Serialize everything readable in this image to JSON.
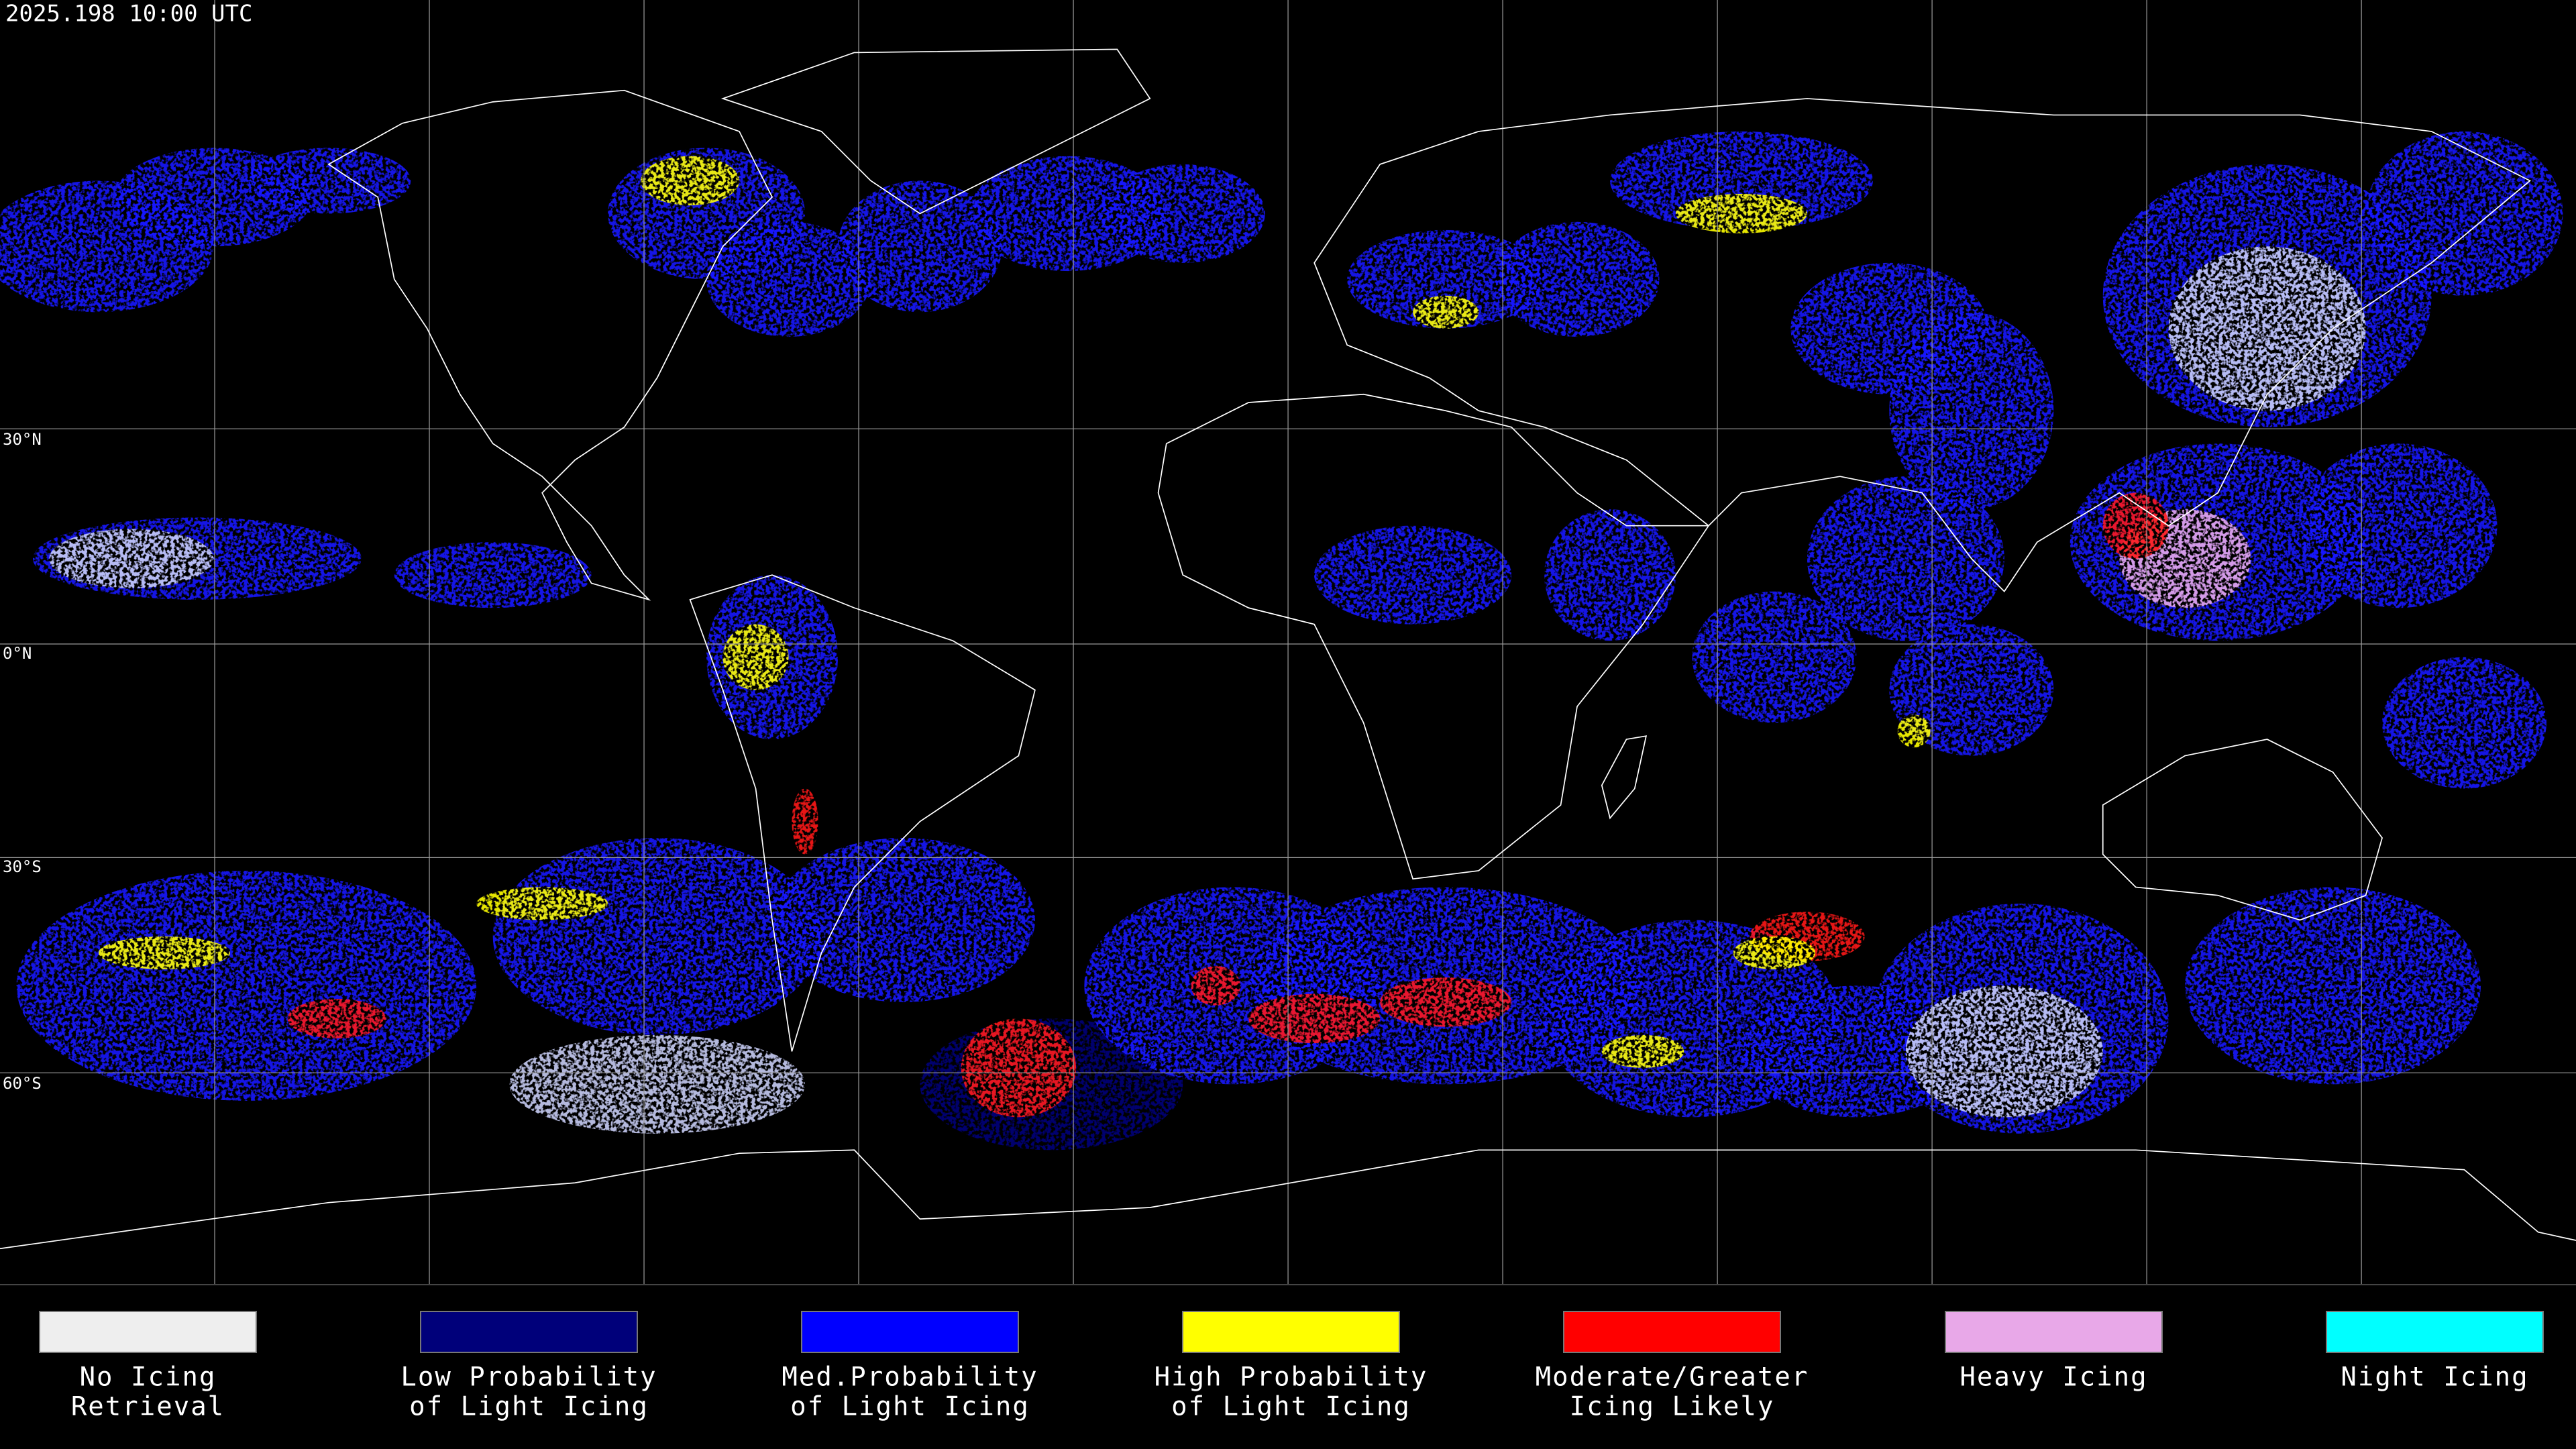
{
  "header": {
    "title": "2025.198 10:00 UTC"
  },
  "map": {
    "latitude_labels": [
      "30°N",
      "0°N",
      "30°S",
      "60°S"
    ]
  },
  "legend": {
    "items": [
      {
        "label": [
          "No Icing",
          "Retrieval"
        ],
        "color": "#eeeeee"
      },
      {
        "label": [
          "Low Probability",
          "of Light Icing"
        ],
        "color": "#00007a"
      },
      {
        "label": [
          "Med.Probability",
          "of Light Icing"
        ],
        "color": "#0000ff"
      },
      {
        "label": [
          "High Probability",
          "of Light Icing"
        ],
        "color": "#ffff00"
      },
      {
        "label": [
          "Moderate/Greater",
          "Icing Likely"
        ],
        "color": "#ff0000"
      },
      {
        "label": [
          "Heavy Icing"
        ],
        "color": "#e8a8e8"
      },
      {
        "label": [
          "Night Icing"
        ],
        "color": "#00ffff"
      }
    ]
  }
}
